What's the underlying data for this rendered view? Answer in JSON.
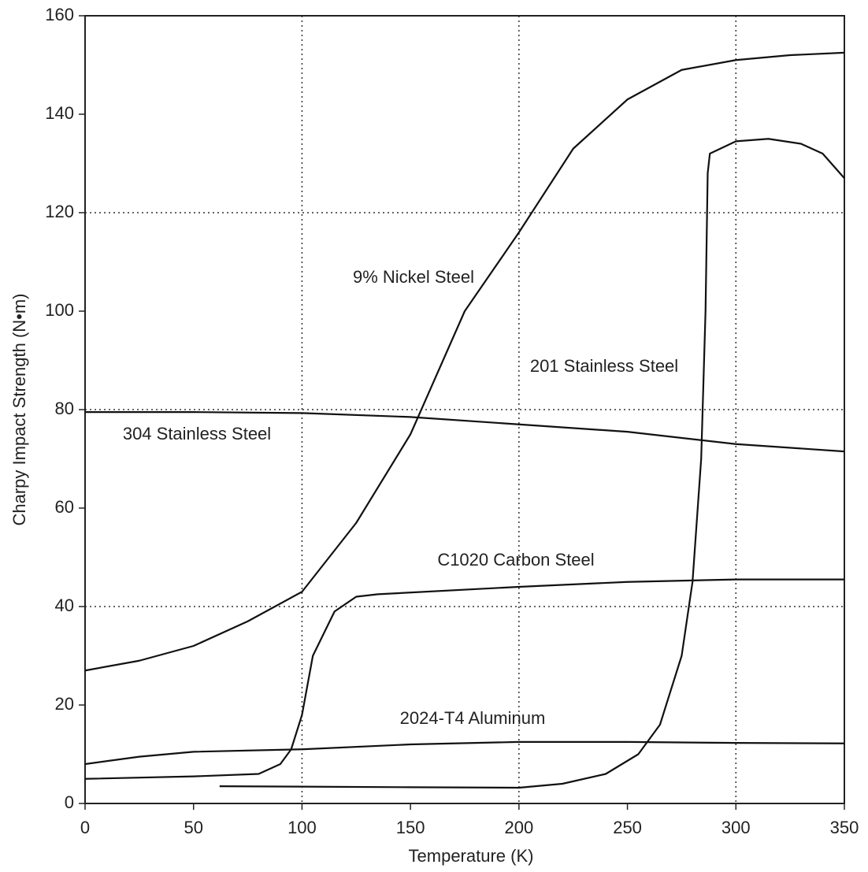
{
  "chart_data": {
    "type": "line",
    "xlabel": "Temperature (K)",
    "ylabel": "Charpy Impact Strength (N•m)",
    "xlim": [
      0,
      350
    ],
    "xticks": [
      0,
      50,
      100,
      150,
      200,
      250,
      300,
      350
    ],
    "ylim": [
      0,
      160
    ],
    "yticks": [
      0,
      20,
      40,
      60,
      80,
      100,
      120,
      140,
      160
    ],
    "grid": true,
    "series": [
      {
        "name": "9% Nickel Steel",
        "color": "#111111",
        "x": [
          0,
          25,
          50,
          75,
          100,
          125,
          150,
          175,
          200,
          225,
          250,
          275,
          300,
          325,
          350
        ],
        "values": [
          27,
          29,
          32,
          37,
          43,
          57,
          75,
          100,
          116,
          133,
          143,
          149,
          151,
          152,
          152.5
        ]
      },
      {
        "name": "201 Stainless Steel",
        "color": "#111111",
        "x": [
          62,
          150,
          200,
          220,
          240,
          255,
          265,
          275,
          280,
          284,
          286,
          287,
          288,
          300,
          315,
          330,
          340,
          350
        ],
        "values": [
          3.5,
          3.3,
          3.2,
          4,
          6,
          10,
          16,
          30,
          45,
          70,
          100,
          128,
          132,
          134.5,
          135,
          134,
          132,
          127
        ]
      },
      {
        "name": "304 Stainless Steel",
        "color": "#111111",
        "x": [
          0,
          50,
          100,
          150,
          200,
          250,
          300,
          350
        ],
        "values": [
          79.5,
          79.5,
          79.3,
          78.5,
          77,
          75.5,
          73,
          71.5
        ]
      },
      {
        "name": "C1020 Carbon Steel",
        "color": "#111111",
        "x": [
          0,
          50,
          80,
          90,
          95,
          100,
          105,
          115,
          125,
          135,
          200,
          250,
          300,
          350
        ],
        "values": [
          5,
          5.5,
          6,
          8,
          11,
          18,
          30,
          39,
          42,
          42.5,
          44,
          45,
          45.5,
          45.5
        ]
      },
      {
        "name": "2024-T4 Aluminum",
        "color": "#111111",
        "x": [
          0,
          25,
          50,
          100,
          150,
          200,
          250,
          300,
          350
        ],
        "values": [
          8,
          9.5,
          10.5,
          11,
          12,
          12.5,
          12.5,
          12.3,
          12.2
        ]
      }
    ]
  }
}
